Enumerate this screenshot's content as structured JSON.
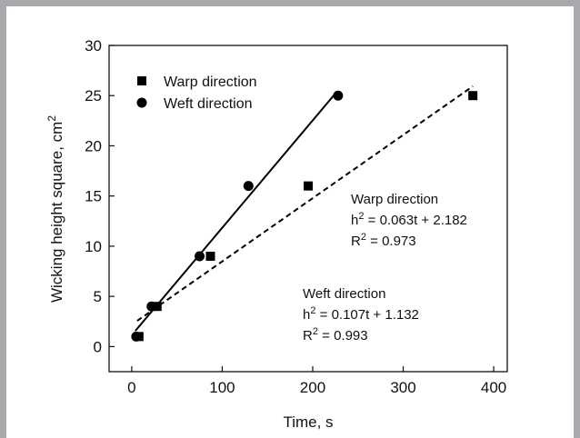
{
  "chart_data": {
    "type": "scatter",
    "xlabel": "Time, s",
    "ylabel": {
      "text": "Wicking height square, cm",
      "sup": "2"
    },
    "xlim": [
      -25,
      415
    ],
    "ylim": [
      -2.5,
      30
    ],
    "xticks": [
      0,
      100,
      200,
      300,
      400
    ],
    "yticks": [
      0,
      5,
      10,
      15,
      20,
      25,
      30
    ],
    "series": [
      {
        "name": "Warp direction",
        "marker": "square",
        "points": [
          [
            8,
            1
          ],
          [
            28,
            4
          ],
          [
            87,
            9
          ],
          [
            195,
            16
          ],
          [
            377,
            25
          ]
        ],
        "fit": {
          "slope": 0.063,
          "intercept": 2.182,
          "style": "dashed",
          "x_range": [
            6,
            377
          ]
        }
      },
      {
        "name": "Weft direction",
        "marker": "circle",
        "points": [
          [
            5,
            1
          ],
          [
            22,
            4
          ],
          [
            75,
            9
          ],
          [
            129,
            16
          ],
          [
            228,
            25
          ]
        ],
        "fit": {
          "slope": 0.107,
          "intercept": 1.132,
          "style": "solid",
          "x_range": [
            4,
            225
          ]
        }
      }
    ],
    "legend": {
      "placement": "top-left"
    },
    "annotations": [
      {
        "lines": [
          [
            "Warp direction",
            ""
          ],
          [
            "h",
            "2",
            " = 0.063t + 2.182"
          ],
          [
            "R",
            "2",
            " = 0.973"
          ]
        ]
      },
      {
        "lines": [
          [
            "Weft direction",
            ""
          ],
          [
            "h",
            "2",
            " = 0.107t + 1.132"
          ],
          [
            "R",
            "2",
            " = 0.993"
          ]
        ]
      }
    ],
    "grid": false,
    "colors": {
      "marker": "#000000",
      "line": "#000000",
      "frame_border": "#a7a9ac"
    }
  }
}
